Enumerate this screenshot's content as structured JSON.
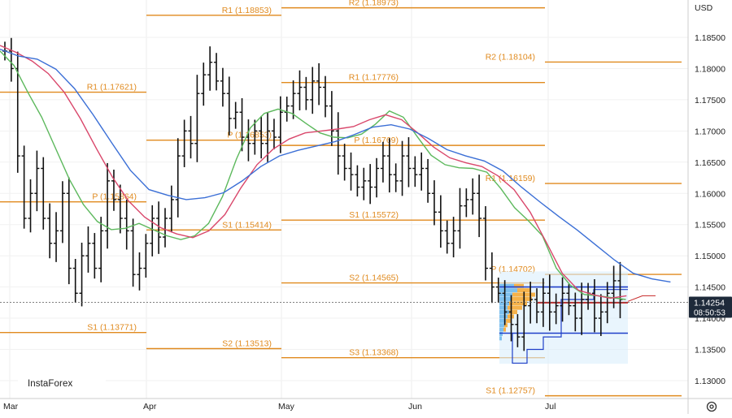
{
  "currency": "USD",
  "brand": "InstaForex",
  "price_tag": {
    "price": "1.14254",
    "countdown": "08:50:53"
  },
  "colors": {
    "pivot": "#e08a1e",
    "ema_fast": "#5cb85c",
    "ema_mid": "#d9476b",
    "ema_slow": "#3b6fd6",
    "candles": "#111111",
    "profile_fill": "#7ec0ee",
    "profile_hot": "#f6b24a",
    "profile_box": "#dbeefb",
    "poc_line": "#c62828",
    "range_lines": "#1f3fc8"
  },
  "chart_data": {
    "type": "line",
    "title": "",
    "y_axis": {
      "min": 1.125,
      "max": 1.19,
      "ticks": [
        "1.18500",
        "1.18000",
        "1.17500",
        "1.17000",
        "1.16500",
        "1.16000",
        "1.15500",
        "1.15000",
        "1.14500",
        "1.14000",
        "1.13500",
        "1.13000"
      ]
    },
    "x_axis": {
      "labels": [
        "Mar",
        "Apr",
        "May",
        "Jun",
        "Jul"
      ]
    },
    "current_price": 1.14254,
    "pivot_levels": [
      {
        "label": "R1 (1.18853)",
        "value": 1.18853,
        "period": "Apr"
      },
      {
        "label": "R2 (1.18973)",
        "value": 1.18973,
        "period": "May"
      },
      {
        "label": "R2 (1.18104)",
        "value": 1.18104,
        "period": "Jun"
      },
      {
        "label": "R1 (1.17621)",
        "value": 1.17621,
        "period": "Mar"
      },
      {
        "label": "R1 (1.17776)",
        "value": 1.17776,
        "period": "May"
      },
      {
        "label": "P (1.16853)",
        "value": 1.16853,
        "period": "Apr"
      },
      {
        "label": "P (1.16769)",
        "value": 1.16769,
        "period": "May"
      },
      {
        "label": "R1 (1.16159)",
        "value": 1.16159,
        "period": "Jun"
      },
      {
        "label": "P (1.15864)",
        "value": 1.15864,
        "period": "Mar"
      },
      {
        "label": "S1 (1.15414)",
        "value": 1.15414,
        "period": "Apr"
      },
      {
        "label": "S1 (1.15572)",
        "value": 1.15572,
        "period": "May"
      },
      {
        "label": "P (1.14702)",
        "value": 1.14702,
        "period": "Jun"
      },
      {
        "label": "S2 (1.14565)",
        "value": 1.14565,
        "period": "May"
      },
      {
        "label": "S1 (1.13771)",
        "value": 1.13771,
        "period": "Mar"
      },
      {
        "label": "S2 (1.13513)",
        "value": 1.13513,
        "period": "Apr"
      },
      {
        "label": "S3 (1.13368)",
        "value": 1.13368,
        "period": "May"
      },
      {
        "label": "S1 (1.12757)",
        "value": 1.12757,
        "period": "Jun"
      }
    ],
    "series": [
      {
        "name": "",
        "kind": "ema_fast",
        "points": [
          [
            0,
            1.1828
          ],
          [
            10,
            1.1805
          ],
          [
            20,
            1.1762
          ],
          [
            30,
            1.1722
          ],
          [
            40,
            1.1672
          ],
          [
            50,
            1.1622
          ],
          [
            60,
            1.1582
          ],
          [
            70,
            1.1555
          ],
          [
            80,
            1.1542
          ],
          [
            90,
            1.1544
          ],
          [
            100,
            1.1552
          ],
          [
            110,
            1.1542
          ],
          [
            120,
            1.1532
          ],
          [
            130,
            1.1526
          ],
          [
            140,
            1.1532
          ],
          [
            150,
            1.1552
          ],
          [
            160,
            1.1595
          ],
          [
            170,
            1.1655
          ],
          [
            180,
            1.1705
          ],
          [
            190,
            1.1728
          ],
          [
            200,
            1.1735
          ],
          [
            210,
            1.1728
          ],
          [
            220,
            1.1712
          ],
          [
            230,
            1.1697
          ],
          [
            240,
            1.169
          ],
          [
            250,
            1.1689
          ],
          [
            260,
            1.1695
          ],
          [
            270,
            1.1711
          ],
          [
            280,
            1.1732
          ],
          [
            290,
            1.1722
          ],
          [
            300,
            1.1691
          ],
          [
            310,
            1.1661
          ],
          [
            320,
            1.1646
          ],
          [
            330,
            1.1641
          ],
          [
            340,
            1.164
          ],
          [
            350,
            1.1634
          ],
          [
            360,
            1.1608
          ],
          [
            370,
            1.1577
          ],
          [
            380,
            1.1556
          ],
          [
            390,
            1.1532
          ],
          [
            400,
            1.148
          ],
          [
            410,
            1.1453
          ],
          [
            420,
            1.1438
          ],
          [
            430,
            1.1436
          ],
          [
            440,
            1.1433
          ],
          [
            450,
            1.143
          ]
        ]
      },
      {
        "name": "",
        "kind": "ema_mid",
        "points": [
          [
            0,
            1.1837
          ],
          [
            10,
            1.1826
          ],
          [
            20,
            1.1812
          ],
          [
            30,
            1.1792
          ],
          [
            40,
            1.1762
          ],
          [
            50,
            1.172
          ],
          [
            60,
            1.1672
          ],
          [
            70,
            1.1626
          ],
          [
            80,
            1.1588
          ],
          [
            90,
            1.1562
          ],
          [
            100,
            1.1545
          ],
          [
            110,
            1.1535
          ],
          [
            120,
            1.1529
          ],
          [
            130,
            1.154
          ],
          [
            140,
            1.1566
          ],
          [
            150,
            1.1609
          ],
          [
            160,
            1.1646
          ],
          [
            170,
            1.1671
          ],
          [
            180,
            1.1687
          ],
          [
            190,
            1.1697
          ],
          [
            200,
            1.17
          ],
          [
            210,
            1.1703
          ],
          [
            220,
            1.1707
          ],
          [
            230,
            1.1718
          ],
          [
            240,
            1.1726
          ],
          [
            250,
            1.1718
          ],
          [
            260,
            1.1697
          ],
          [
            270,
            1.1674
          ],
          [
            280,
            1.1657
          ],
          [
            290,
            1.1649
          ],
          [
            300,
            1.1643
          ],
          [
            310,
            1.1628
          ],
          [
            320,
            1.1606
          ],
          [
            330,
            1.157
          ],
          [
            340,
            1.1522
          ],
          [
            350,
            1.1472
          ],
          [
            360,
            1.1445
          ],
          [
            370,
            1.1437
          ],
          [
            380,
            1.1432
          ],
          [
            390,
            1.1436
          ]
        ]
      },
      {
        "name": "",
        "kind": "ema_slow",
        "points": [
          [
            0,
            1.1831
          ],
          [
            10,
            1.182
          ],
          [
            20,
            1.1815
          ],
          [
            30,
            1.1799
          ],
          [
            40,
            1.1768
          ],
          [
            50,
            1.1726
          ],
          [
            60,
            1.1681
          ],
          [
            70,
            1.1637
          ],
          [
            80,
            1.1606
          ],
          [
            90,
            1.1597
          ],
          [
            100,
            1.159
          ],
          [
            110,
            1.1593
          ],
          [
            120,
            1.1601
          ],
          [
            130,
            1.162
          ],
          [
            140,
            1.1643
          ],
          [
            150,
            1.166
          ],
          [
            160,
            1.1669
          ],
          [
            170,
            1.1676
          ],
          [
            180,
            1.1683
          ],
          [
            190,
            1.1694
          ],
          [
            200,
            1.1706
          ],
          [
            210,
            1.171
          ],
          [
            220,
            1.1703
          ],
          [
            230,
            1.1688
          ],
          [
            240,
            1.167
          ],
          [
            250,
            1.166
          ],
          [
            260,
            1.1652
          ],
          [
            270,
            1.1636
          ],
          [
            280,
            1.161
          ],
          [
            290,
            1.1586
          ],
          [
            300,
            1.1563
          ],
          [
            310,
            1.1541
          ],
          [
            320,
            1.1517
          ],
          [
            330,
            1.1493
          ],
          [
            340,
            1.1472
          ],
          [
            350,
            1.1463
          ],
          [
            360,
            1.1458
          ]
        ]
      }
    ]
  }
}
